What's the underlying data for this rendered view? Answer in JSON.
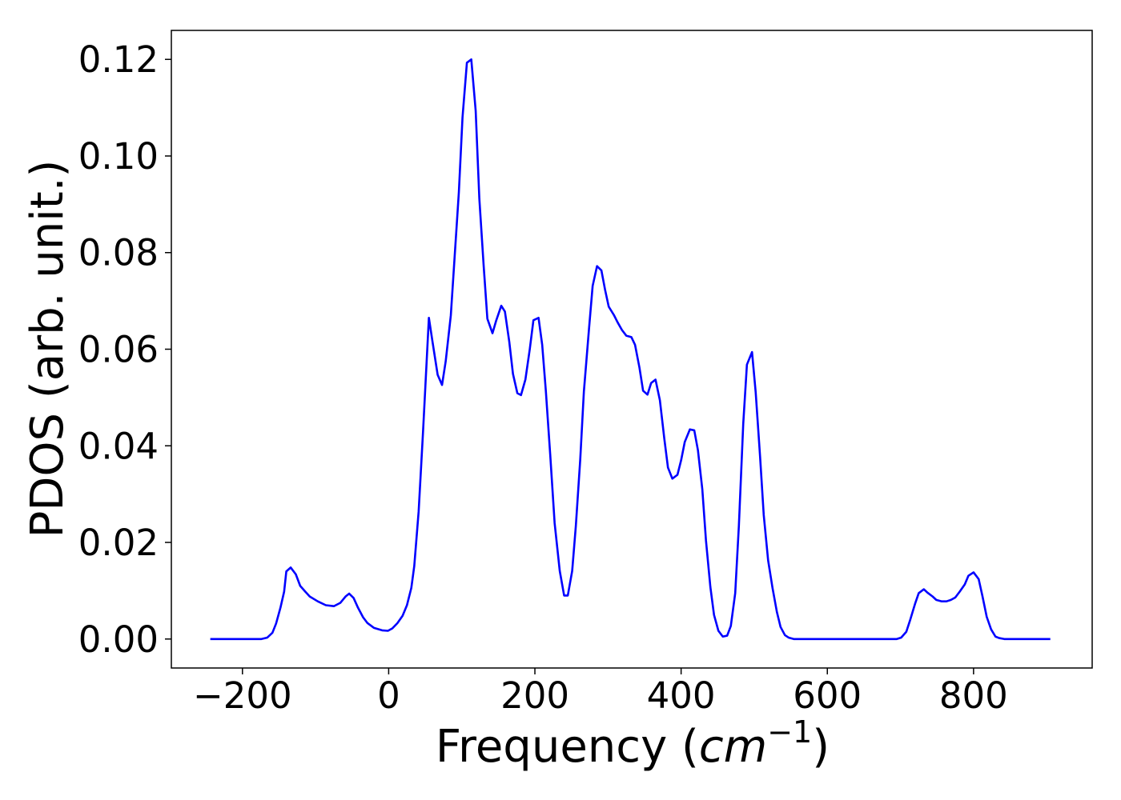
{
  "chart_data": {
    "type": "line",
    "xlabel": [
      "Frequency (",
      "cm",
      "−1",
      ")"
    ],
    "ylabel": "PDOS (arb. unit.)",
    "x": [
      -244,
      -174,
      -166,
      -159,
      -154,
      -148,
      -143,
      -140,
      -134,
      -127,
      -121,
      -114,
      -108,
      -97,
      -86,
      -75,
      -66,
      -59,
      -54,
      -48,
      -42,
      -35,
      -29,
      -20,
      -9,
      -1,
      5,
      12,
      19,
      25,
      31,
      35,
      41,
      47,
      55,
      60,
      67,
      73,
      78,
      85,
      90,
      96,
      101,
      107,
      113,
      119,
      124,
      130,
      135,
      142,
      147,
      154,
      159,
      165,
      170,
      176,
      181,
      187,
      193,
      198,
      205,
      210,
      215,
      221,
      227,
      234,
      240,
      245,
      251,
      256,
      262,
      267,
      274,
      279,
      285,
      291,
      296,
      301,
      308,
      313,
      319,
      325,
      332,
      337,
      343,
      348,
      354,
      359,
      365,
      371,
      377,
      382,
      388,
      395,
      400,
      405,
      412,
      418,
      423,
      429,
      434,
      440,
      445,
      451,
      457,
      463,
      468,
      474,
      479,
      485,
      490,
      497,
      502,
      508,
      513,
      519,
      525,
      531,
      536,
      542,
      547,
      554,
      695,
      701,
      708,
      713,
      720,
      725,
      732,
      737,
      744,
      749,
      756,
      763,
      769,
      775,
      781,
      788,
      793,
      800,
      807,
      812,
      818,
      824,
      830,
      835,
      842,
      905
    ],
    "series": [
      {
        "color": "#0000ff",
        "values": [
          0,
          0,
          0.0003,
          0.0013,
          0.0032,
          0.0065,
          0.0098,
          0.014,
          0.0148,
          0.0134,
          0.011,
          0.0098,
          0.0088,
          0.0078,
          0.007,
          0.0068,
          0.0075,
          0.0088,
          0.0094,
          0.0085,
          0.0065,
          0.0045,
          0.0033,
          0.0023,
          0.0018,
          0.0017,
          0.0022,
          0.0033,
          0.0048,
          0.007,
          0.0106,
          0.0151,
          0.0264,
          0.0429,
          0.0665,
          0.0615,
          0.0547,
          0.0526,
          0.0575,
          0.067,
          0.0786,
          0.0925,
          0.108,
          0.1193,
          0.12,
          0.1094,
          0.0912,
          0.0771,
          0.0663,
          0.0633,
          0.0659,
          0.069,
          0.0678,
          0.0615,
          0.0549,
          0.0509,
          0.0505,
          0.0537,
          0.06,
          0.066,
          0.0665,
          0.0609,
          0.0513,
          0.0381,
          0.024,
          0.0141,
          0.009,
          0.009,
          0.0141,
          0.0234,
          0.0371,
          0.0512,
          0.0642,
          0.0731,
          0.0772,
          0.0763,
          0.0723,
          0.0688,
          0.0671,
          0.0656,
          0.064,
          0.0628,
          0.0625,
          0.0609,
          0.0562,
          0.0514,
          0.0506,
          0.053,
          0.0537,
          0.0494,
          0.0415,
          0.0355,
          0.0332,
          0.034,
          0.037,
          0.0408,
          0.0434,
          0.0432,
          0.0391,
          0.031,
          0.0204,
          0.0108,
          0.005,
          0.0017,
          0.0005,
          0.0007,
          0.0027,
          0.0095,
          0.0234,
          0.0446,
          0.0568,
          0.0594,
          0.0511,
          0.0378,
          0.0257,
          0.0163,
          0.0106,
          0.0056,
          0.0025,
          0.0008,
          0.0003,
          0,
          0,
          0.0003,
          0.0015,
          0.0038,
          0.0073,
          0.0095,
          0.0103,
          0.0096,
          0.0088,
          0.0081,
          0.0078,
          0.0078,
          0.0081,
          0.0086,
          0.0098,
          0.0113,
          0.0131,
          0.0138,
          0.0124,
          0.009,
          0.0046,
          0.002,
          0.0005,
          0.0002,
          0,
          0
        ]
      }
    ],
    "xlim": [
      -297.25,
      962.25
    ],
    "ylim": [
      -0.006,
      0.126
    ],
    "xticks": [
      {
        "value": -200,
        "label": "−200"
      },
      0,
      200,
      400,
      600,
      800
    ],
    "yticks": [
      {
        "value": 0,
        "label": "0.00"
      },
      0.02,
      0.04,
      0.06,
      0.08,
      {
        "value": 0.1,
        "label": "0.10"
      },
      0.12
    ],
    "grid": false
  }
}
